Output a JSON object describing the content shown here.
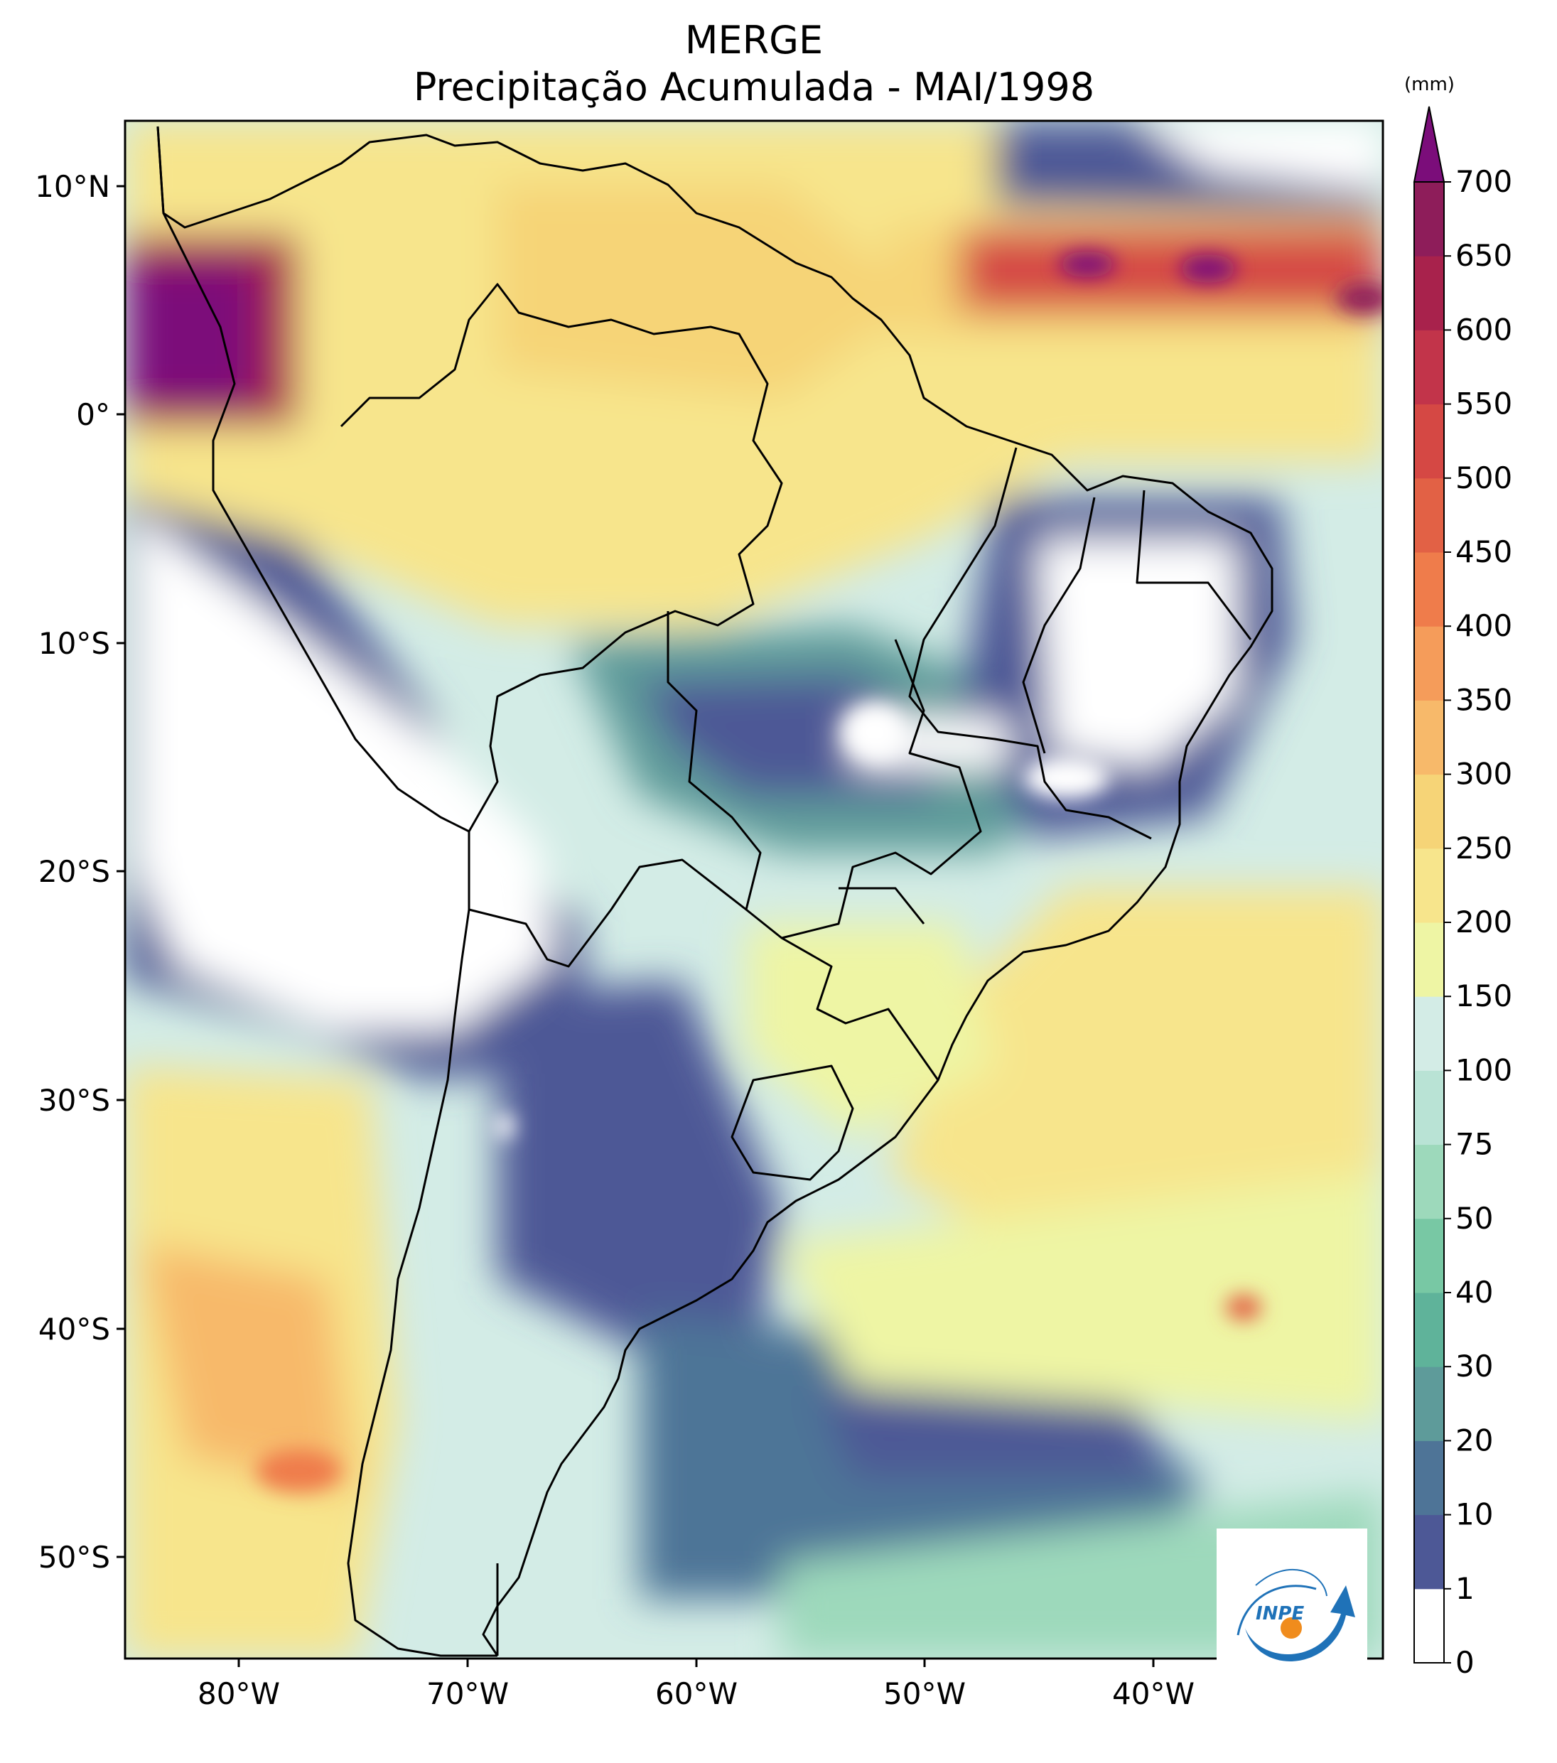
{
  "title": {
    "line1": "MERGE",
    "line2": "Precipitação Acumulada - MAI/1998"
  },
  "axes": {
    "lat_labels": [
      "10°N",
      "0°",
      "10°S",
      "20°S",
      "30°S",
      "40°S",
      "50°S"
    ],
    "lon_labels": [
      "80°W",
      "70°W",
      "60°W",
      "50°W",
      "40°W"
    ],
    "lat_range": [
      -56,
      13
    ],
    "lon_range": [
      -85,
      -30
    ]
  },
  "colorbar": {
    "unit": "(mm)",
    "levels": [
      "0",
      "1",
      "10",
      "20",
      "30",
      "40",
      "50",
      "75",
      "100",
      "150",
      "200",
      "250",
      "300",
      "350",
      "400",
      "450",
      "500",
      "550",
      "600",
      "650",
      "700"
    ],
    "colors": [
      "#ffffff",
      "#4d5896",
      "#4e7497",
      "#5e9b9a",
      "#5fb39a",
      "#78c8a4",
      "#9dd9bb",
      "#b9e3d5",
      "#d3ece6",
      "#eef5a4",
      "#f7e58c",
      "#f6d477",
      "#f7b96a",
      "#f59c5a",
      "#ef7c4b",
      "#e26145",
      "#d54844",
      "#c2344a",
      "#a8224c",
      "#8e1d5a"
    ],
    "extend_color": "#7b0d7a"
  },
  "logo": {
    "text": "INPE",
    "colors": {
      "primary": "#1f72b8",
      "accent": "#f08c1d"
    }
  }
}
